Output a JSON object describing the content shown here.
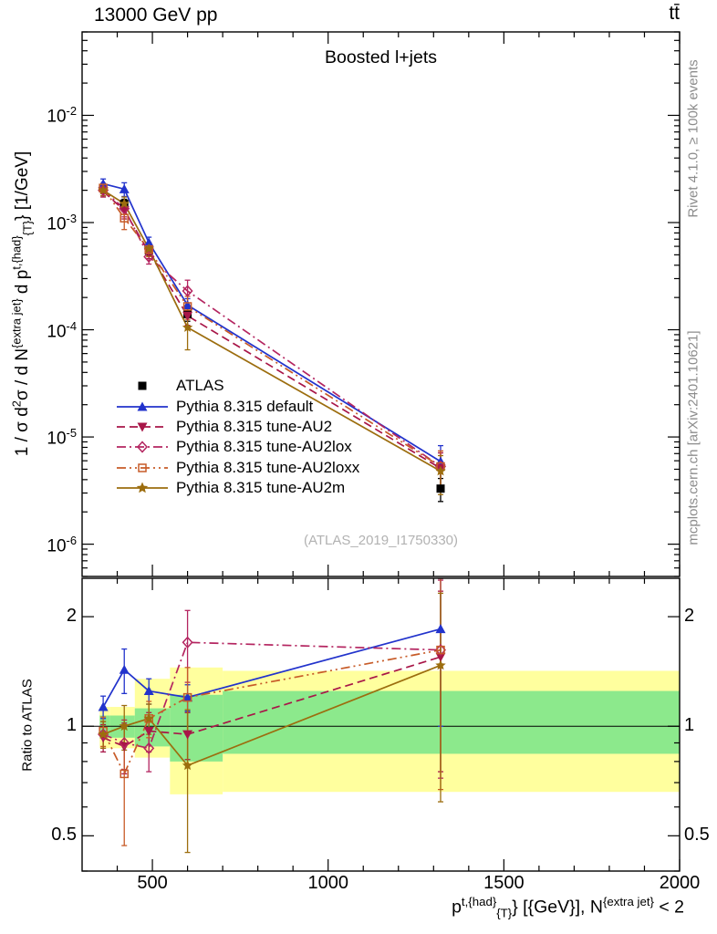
{
  "header": {
    "left": "13000 GeV pp",
    "right": "tt̄"
  },
  "side_notes": {
    "top": "Rivet 4.1.0, ≥ 100k events",
    "bottom": "mcplots.cern.ch [arXiv:2401.10621]"
  },
  "main_plot": {
    "title": "Boosted l+jets",
    "watermark": "(ATLAS_2019_I1750330)",
    "ylabel_text": "1 / σ d2σ / d N{extra jet} d p{t,{had}}{T} [1/GeV]",
    "ylabel_segments": [
      {
        "t": "1 / σ d"
      },
      {
        "t": "2",
        "sup": true
      },
      {
        "t": "σ / d N"
      },
      {
        "t": "{extra jet}",
        "sup": true
      },
      {
        "t": " d p"
      },
      {
        "t": "t,{had}",
        "sup": true
      },
      {
        "t": "{T}",
        "sub": true
      },
      {
        "t": "} [1/GeV]"
      }
    ],
    "ytick_exponents": [
      -2,
      -3,
      -4,
      -5,
      -6
    ]
  },
  "ratio_plot": {
    "ylabel": "Ratio to ATLAS",
    "ytick_labels": [
      {
        "v": 2,
        "label": "2"
      },
      {
        "v": 1,
        "label": "1"
      },
      {
        "v": 0.5,
        "label": "0.5"
      }
    ]
  },
  "xaxis": {
    "label_text": "p{t,{had}}{T} [{GeV}], N{extra jet} < 2",
    "label_segments": [
      {
        "t": "p"
      },
      {
        "t": "t,{had}",
        "sup": true
      },
      {
        "t": "{T}",
        "sub": true
      },
      {
        "t": "} [{GeV}], N"
      },
      {
        "t": "{extra jet}",
        "sup": true
      },
      {
        "t": " < 2"
      }
    ],
    "ticks": [
      500,
      1000,
      1500,
      2000
    ],
    "range": [
      300,
      2000
    ]
  },
  "chart_data": [
    {
      "type": "line",
      "panel": "main",
      "title": "Boosted l+jets",
      "x_range": [
        300,
        2000
      ],
      "y_range": [
        5e-07,
        0.06
      ],
      "y_scale": "log",
      "x": [
        360,
        420,
        490,
        600,
        1320
      ],
      "series": [
        {
          "name": "ATLAS",
          "color": "#000000",
          "marker": "square-filled",
          "line": "none",
          "values": [
            0.0021,
            0.0015,
            0.00055,
            0.00014,
            3.3e-06
          ],
          "yerr": [
            0.0002,
            0.00015,
            5e-05,
            2e-05,
            8e-07
          ]
        },
        {
          "name": "Pythia 8.315 default",
          "color": "#2233cc",
          "marker": "triangle-up",
          "line": "solid",
          "values": [
            0.0023,
            0.00205,
            0.00065,
            0.00017,
            5.9e-06
          ],
          "yerr": [
            0.00025,
            0.0003,
            8e-05,
            2.5e-05,
            2.4e-06
          ]
        },
        {
          "name": "Pythia 8.315 tune-AU2",
          "color": "#a81648",
          "marker": "triangle-down",
          "line": "dashed",
          "values": [
            0.00195,
            0.0013,
            0.00053,
            0.000135,
            5.1e-06
          ],
          "yerr": [
            0.00022,
            0.00022,
            7e-05,
            2.5e-05,
            2e-06
          ]
        },
        {
          "name": "Pythia 8.315 tune-AU2lox",
          "color": "#b42560",
          "marker": "diamond-open",
          "line": "dash-dot",
          "values": [
            0.002,
            0.00135,
            0.00048,
            0.00023,
            5.3e-06
          ],
          "yerr": [
            0.00022,
            0.00022,
            7e-05,
            6e-05,
            2.1e-06
          ]
        },
        {
          "name": "Pythia 8.315 tune-AU2loxx",
          "color": "#c75b28",
          "marker": "square-open",
          "line": "dash-dot-dot",
          "values": [
            0.0021,
            0.0011,
            0.00056,
            0.000165,
            5.3e-06
          ],
          "yerr": [
            0.00023,
            0.00024,
            8e-05,
            4e-05,
            2.1e-06
          ]
        },
        {
          "name": "Pythia 8.315 tune-AU2m",
          "color": "#9c6d0e",
          "marker": "star",
          "line": "solid",
          "values": [
            0.002,
            0.0015,
            0.00057,
            0.000105,
            4.8e-06
          ],
          "yerr": [
            0.00022,
            0.00023,
            8e-05,
            4e-05,
            1.9e-06
          ]
        }
      ]
    },
    {
      "type": "ratio",
      "panel": "ratio",
      "x_range": [
        300,
        2000
      ],
      "y_range": [
        0.4,
        2.55
      ],
      "y_scale": "log",
      "ytick_major": [
        0.5,
        1,
        2
      ],
      "reference": 1,
      "x": [
        360,
        420,
        490,
        600,
        1320
      ],
      "bands": {
        "edges": [
          350,
          380,
          450,
          550,
          700,
          2000
        ],
        "yellow": {
          "color": "#ffff9e",
          "lo": [
            0.87,
            0.87,
            0.82,
            0.65,
            0.66
          ],
          "hi": [
            1.13,
            1.13,
            1.35,
            1.45,
            1.42
          ]
        },
        "green": {
          "color": "#8ce98c",
          "lo": [
            0.93,
            0.93,
            0.88,
            0.8,
            0.84
          ],
          "hi": [
            1.07,
            1.07,
            1.12,
            1.22,
            1.25
          ]
        }
      },
      "series": [
        {
          "name": "Pythia 8.315 default",
          "color": "#2233cc",
          "marker": "triangle-up",
          "line": "solid",
          "values": [
            1.13,
            1.43,
            1.25,
            1.2,
            1.85
          ],
          "yerr": [
            0.08,
            0.2,
            0.1,
            0.1,
            0.85
          ]
        },
        {
          "name": "Pythia 8.315 tune-AU2",
          "color": "#a81648",
          "marker": "triangle-down",
          "line": "dashed",
          "values": [
            0.93,
            0.88,
            0.97,
            0.95,
            1.55
          ],
          "yerr": [
            0.08,
            0.14,
            0.12,
            0.14,
            0.8
          ]
        },
        {
          "name": "Pythia 8.315 tune-AU2lox",
          "color": "#b42560",
          "marker": "diamond-open",
          "line": "dash-dot",
          "values": [
            0.95,
            0.9,
            0.87,
            1.7,
            1.62
          ],
          "yerr": [
            0.08,
            0.14,
            0.12,
            0.38,
            0.9
          ]
        },
        {
          "name": "Pythia 8.315 tune-AU2loxx",
          "color": "#c75b28",
          "marker": "square-open",
          "line": "dash-dot-dot",
          "values": [
            0.97,
            0.74,
            1.05,
            1.2,
            1.62
          ],
          "yerr": [
            0.09,
            0.27,
            0.12,
            0.25,
            0.95
          ]
        },
        {
          "name": "Pythia 8.315 tune-AU2m",
          "color": "#9c6d0e",
          "marker": "star",
          "line": "solid",
          "values": [
            0.95,
            1.0,
            1.05,
            0.78,
            1.47
          ],
          "yerr": [
            0.08,
            0.14,
            0.1,
            0.33,
            0.85
          ]
        }
      ]
    }
  ]
}
